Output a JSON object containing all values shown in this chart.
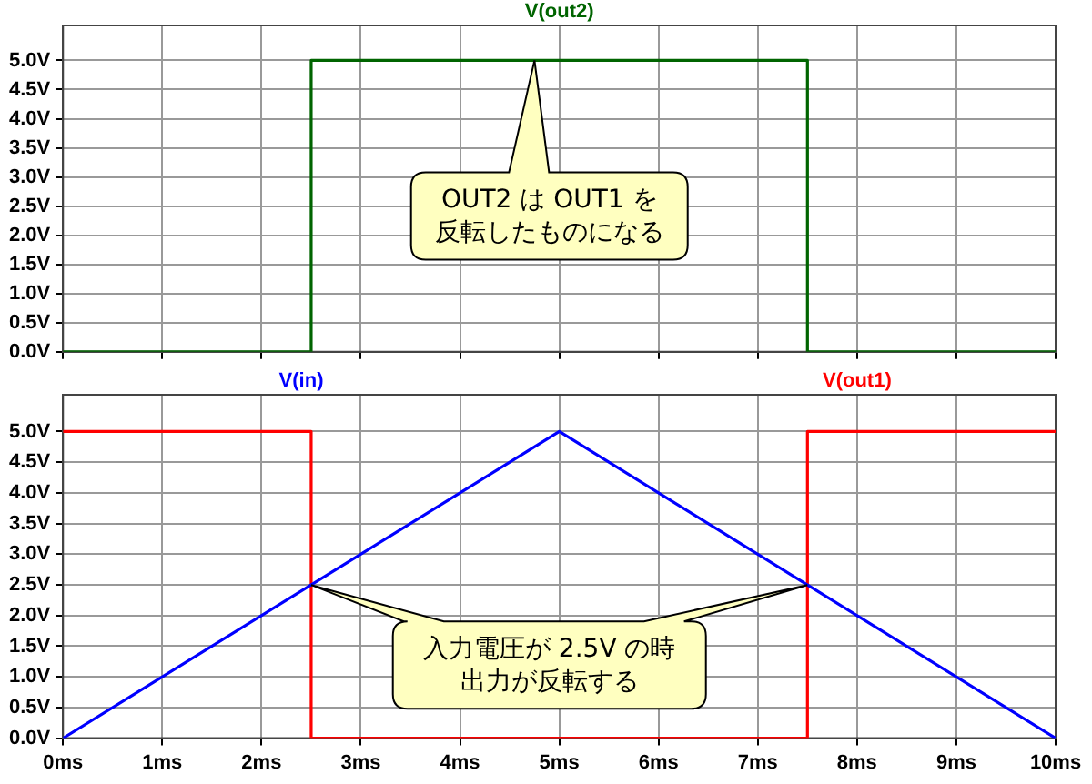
{
  "chart_data": [
    {
      "type": "line",
      "x": [
        0,
        2.5,
        2.5,
        7.5,
        7.5,
        10
      ],
      "series": [
        {
          "name": "V(out2)",
          "color": "#006400",
          "values": [
            0,
            0,
            5,
            5,
            0,
            0
          ]
        }
      ],
      "xlim": [
        0,
        10
      ],
      "ylim": [
        0,
        5.6
      ],
      "xticks": [
        0,
        1,
        2,
        3,
        4,
        5,
        6,
        7,
        8,
        9,
        10
      ],
      "yticks": [
        {
          "value": 0,
          "label": "0.0V"
        },
        {
          "value": 0.5,
          "label": "0.5V"
        },
        {
          "value": 1,
          "label": "1.0V"
        },
        {
          "value": 1.5,
          "label": "1.5V"
        },
        {
          "value": 2,
          "label": "2.0V"
        },
        {
          "value": 2.5,
          "label": "2.5V"
        },
        {
          "value": 3,
          "label": "3.0V"
        },
        {
          "value": 3.5,
          "label": "3.5V"
        },
        {
          "value": 4,
          "label": "4.0V"
        },
        {
          "value": 4.5,
          "label": "4.5V"
        },
        {
          "value": 5,
          "label": "5.0V"
        }
      ],
      "tick_labels": "y",
      "grid": true,
      "legend": "top",
      "marker": "none",
      "line_style": "solid",
      "annotations": [
        "OUT2 は OUT1 を反転したものになる"
      ]
    },
    {
      "type": "line",
      "series": [
        {
          "name": "V(in)",
          "color": "#0000ff",
          "x": [
            0,
            5,
            10
          ],
          "values": [
            0,
            5,
            0
          ]
        },
        {
          "name": "V(out1)",
          "color": "#ff0000",
          "x": [
            0,
            2.5,
            2.5,
            7.5,
            7.5,
            10
          ],
          "values": [
            5,
            5,
            0,
            0,
            5,
            5
          ]
        }
      ],
      "xlim": [
        0,
        10
      ],
      "ylim": [
        0,
        5.6
      ],
      "xticks": [
        {
          "value": 0,
          "label": "0ms"
        },
        {
          "value": 1,
          "label": "1ms"
        },
        {
          "value": 2,
          "label": "2ms"
        },
        {
          "value": 3,
          "label": "3ms"
        },
        {
          "value": 4,
          "label": "4ms"
        },
        {
          "value": 5,
          "label": "5ms"
        },
        {
          "value": 6,
          "label": "6ms"
        },
        {
          "value": 7,
          "label": "7ms"
        },
        {
          "value": 8,
          "label": "8ms"
        },
        {
          "value": 9,
          "label": "9ms"
        },
        {
          "value": 10,
          "label": "10ms"
        }
      ],
      "yticks": [
        {
          "value": 0,
          "label": "0.0V"
        },
        {
          "value": 0.5,
          "label": "0.5V"
        },
        {
          "value": 1,
          "label": "1.0V"
        },
        {
          "value": 1.5,
          "label": "1.5V"
        },
        {
          "value": 2,
          "label": "2.0V"
        },
        {
          "value": 2.5,
          "label": "2.5V"
        },
        {
          "value": 3,
          "label": "3.0V"
        },
        {
          "value": 3.5,
          "label": "3.5V"
        },
        {
          "value": 4,
          "label": "4.0V"
        },
        {
          "value": 4.5,
          "label": "4.5V"
        },
        {
          "value": 5,
          "label": "5.0V"
        }
      ],
      "grid": true,
      "legend": "top",
      "marker": "none",
      "line_style": "solid",
      "annotations": [
        "入力電圧が 2.5V の時出力が反転する"
      ]
    }
  ]
}
